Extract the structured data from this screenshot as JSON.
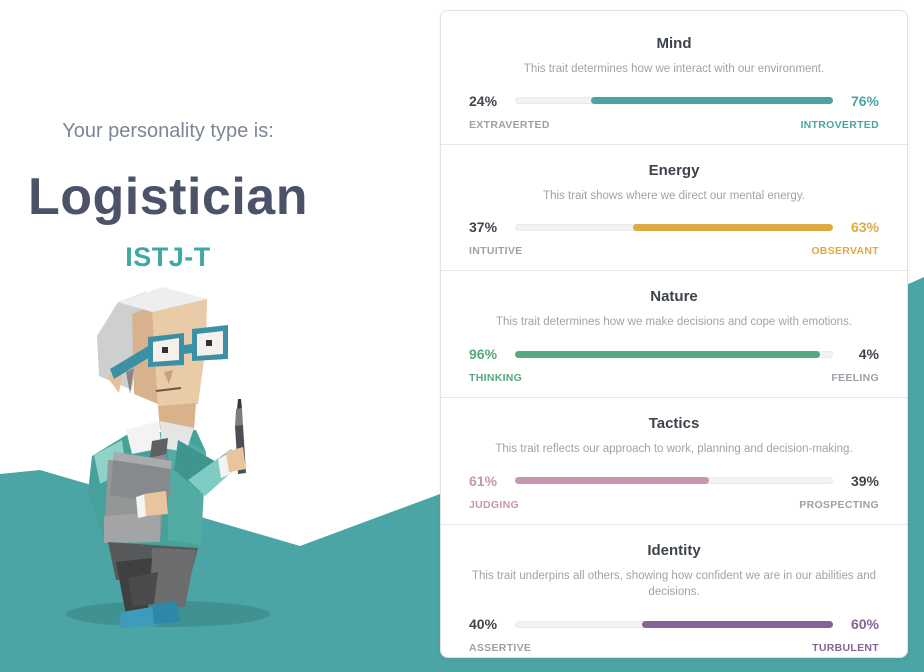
{
  "page": {
    "teal_background": "#4BA5A4"
  },
  "hero": {
    "intro": "Your personality type is:",
    "type_name": "Logistician",
    "type_code": "ISTJ-T",
    "illustration": "logistician-character"
  },
  "card": {
    "traits": [
      {
        "name": "Mind",
        "description": "This trait determines how we interact with our environment.",
        "left": {
          "pct": "24%",
          "value": 24,
          "label": "EXTRAVERTED"
        },
        "right": {
          "pct": "76%",
          "value": 76,
          "label": "INTROVERTED"
        },
        "winner": "right",
        "color": "#4AA5A2"
      },
      {
        "name": "Energy",
        "description": "This trait shows where we direct our mental energy.",
        "left": {
          "pct": "37%",
          "value": 37,
          "label": "INTUITIVE"
        },
        "right": {
          "pct": "63%",
          "value": 63,
          "label": "OBSERVANT"
        },
        "winner": "right",
        "color": "#E0A944"
      },
      {
        "name": "Nature",
        "description": "This trait determines how we make decisions and cope with emotions.",
        "left": {
          "pct": "96%",
          "value": 96,
          "label": "THINKING"
        },
        "right": {
          "pct": "4%",
          "value": 4,
          "label": "FEELING"
        },
        "winner": "left",
        "color": "#56A87E"
      },
      {
        "name": "Tactics",
        "description": "This trait reflects our approach to work, planning and decision-making.",
        "left": {
          "pct": "61%",
          "value": 61,
          "label": "JUDGING"
        },
        "right": {
          "pct": "39%",
          "value": 39,
          "label": "PROSPECTING"
        },
        "winner": "left",
        "color": "#C795AF"
      },
      {
        "name": "Identity",
        "description": "This trait underpins all others, showing how confident we are in our abilities and decisions.",
        "left": {
          "pct": "40%",
          "value": 40,
          "label": "ASSERTIVE"
        },
        "right": {
          "pct": "60%",
          "value": 60,
          "label": "TURBULENT"
        },
        "winner": "right",
        "color": "#856399"
      }
    ]
  }
}
